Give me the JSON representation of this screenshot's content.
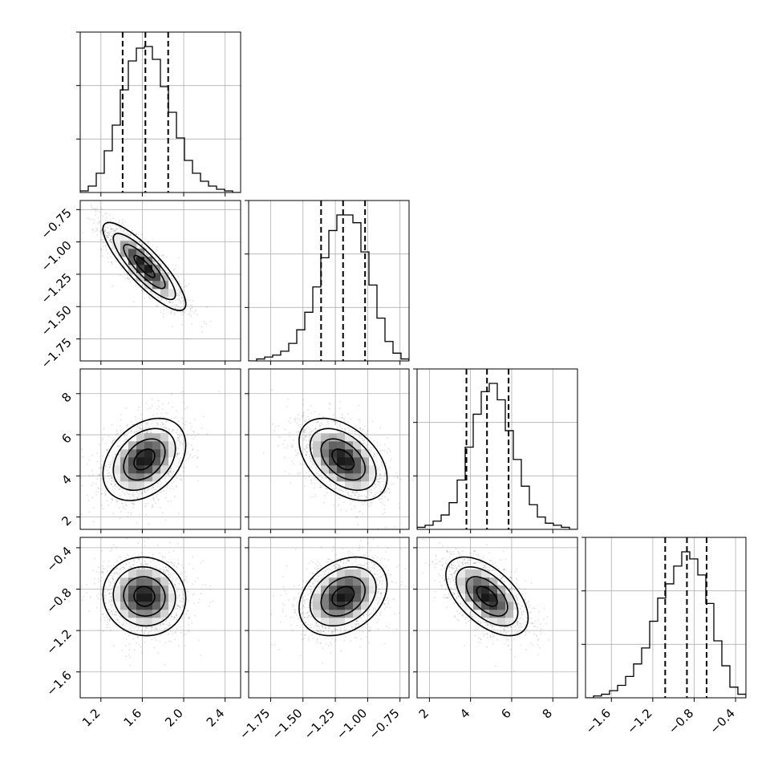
{
  "chart_data": {
    "type": "corner",
    "parameters": [
      {
        "range": [
          1.0,
          2.55
        ],
        "ticks": [
          {
            "v": 1.2,
            "label": "1.2"
          },
          {
            "v": 1.6,
            "label": "1.6"
          },
          {
            "v": 2.0,
            "label": "2.0"
          },
          {
            "v": 2.4,
            "label": "2.4"
          }
        ],
        "quantiles": [
          1.41,
          1.63,
          1.85
        ],
        "hist": {
          "edges": [
            1.0,
            1.0775,
            1.155,
            1.2325,
            1.31,
            1.3875,
            1.465,
            1.5425,
            1.62,
            1.6975,
            1.775,
            1.8525,
            1.93,
            2.0075,
            2.085,
            2.1625,
            2.24,
            2.3175,
            2.395,
            2.4725,
            2.55
          ],
          "values": [
            0.01,
            0.04,
            0.12,
            0.26,
            0.42,
            0.64,
            0.82,
            0.9,
            0.91,
            0.83,
            0.66,
            0.5,
            0.34,
            0.2,
            0.12,
            0.07,
            0.04,
            0.02,
            0.01,
            0.0
          ]
        }
      },
      {
        "range": [
          -1.92,
          -0.68
        ],
        "ticks": [
          {
            "v": -1.75,
            "label": "−1.75"
          },
          {
            "v": -1.5,
            "label": "−1.50"
          },
          {
            "v": -1.25,
            "label": "−1.25"
          },
          {
            "v": -1.0,
            "label": "−1.00"
          },
          {
            "v": -0.75,
            "label": "−0.75"
          }
        ],
        "quantiles": [
          -1.36,
          -1.19,
          -1.02
        ],
        "hist": {
          "edges": [
            -1.92,
            -1.858,
            -1.796,
            -1.734,
            -1.672,
            -1.61,
            -1.548,
            -1.486,
            -1.424,
            -1.362,
            -1.3,
            -1.238,
            -1.176,
            -1.114,
            -1.052,
            -0.99,
            -0.928,
            -0.866,
            -0.804,
            -0.742,
            -0.68
          ],
          "values": [
            0.0,
            0.01,
            0.02,
            0.03,
            0.05,
            0.09,
            0.16,
            0.25,
            0.38,
            0.53,
            0.67,
            0.75,
            0.75,
            0.71,
            0.56,
            0.39,
            0.22,
            0.1,
            0.04,
            0.01
          ]
        }
      },
      {
        "range": [
          1.4,
          9.2
        ],
        "ticks": [
          {
            "v": 2,
            "label": "2"
          },
          {
            "v": 4,
            "label": "4"
          },
          {
            "v": 6,
            "label": "6"
          },
          {
            "v": 8,
            "label": "8"
          }
        ],
        "quantiles": [
          3.8,
          4.8,
          5.85
        ],
        "hist": {
          "edges": [
            1.4,
            1.79,
            2.18,
            2.57,
            2.96,
            3.35,
            3.74,
            4.13,
            4.52,
            4.91,
            5.3,
            5.69,
            6.08,
            6.47,
            6.86,
            7.25,
            7.64,
            8.03,
            8.42,
            8.81,
            9.2
          ],
          "values": [
            0.01,
            0.02,
            0.04,
            0.07,
            0.13,
            0.24,
            0.4,
            0.56,
            0.67,
            0.71,
            0.63,
            0.48,
            0.34,
            0.21,
            0.12,
            0.06,
            0.03,
            0.02,
            0.01,
            0.0
          ]
        }
      },
      {
        "range": [
          -1.85,
          -0.3
        ],
        "ticks": [
          {
            "v": -1.6,
            "label": "−1.6"
          },
          {
            "v": -1.2,
            "label": "−1.2"
          },
          {
            "v": -0.8,
            "label": "−0.8"
          },
          {
            "v": -0.4,
            "label": "−0.4"
          }
        ],
        "quantiles": [
          -1.08,
          -0.87,
          -0.68
        ],
        "hist": {
          "edges": [
            -1.85,
            -1.7725,
            -1.695,
            -1.6175,
            -1.54,
            -1.4625,
            -1.385,
            -1.3075,
            -1.23,
            -1.1525,
            -1.075,
            -0.9975,
            -0.92,
            -0.8425,
            -0.765,
            -0.6875,
            -0.61,
            -0.5325,
            -0.455,
            -0.3775,
            -0.3
          ],
          "values": [
            0.0,
            0.01,
            0.02,
            0.04,
            0.07,
            0.12,
            0.19,
            0.28,
            0.43,
            0.56,
            0.64,
            0.74,
            0.82,
            0.78,
            0.69,
            0.53,
            0.32,
            0.18,
            0.06,
            0.02
          ]
        }
      }
    ],
    "pairs": [
      {
        "row": 1,
        "col": 0,
        "mean": [
          1.62,
          -1.19
        ],
        "sd": [
          0.2,
          0.17
        ],
        "rho": -0.85
      },
      {
        "row": 2,
        "col": 0,
        "mean": [
          1.62,
          4.8
        ],
        "sd": [
          0.2,
          1.0
        ],
        "rho": 0.35
      },
      {
        "row": 2,
        "col": 1,
        "mean": [
          -1.19,
          4.8
        ],
        "sd": [
          0.17,
          1.0
        ],
        "rho": -0.45
      },
      {
        "row": 3,
        "col": 0,
        "mean": [
          1.62,
          -0.87
        ],
        "sd": [
          0.2,
          0.19
        ],
        "rho": -0.05
      },
      {
        "row": 3,
        "col": 1,
        "mean": [
          -1.19,
          -0.87
        ],
        "sd": [
          0.17,
          0.19
        ],
        "rho": 0.3
      },
      {
        "row": 3,
        "col": 2,
        "mean": [
          4.8,
          -0.87
        ],
        "sd": [
          1.0,
          0.19
        ],
        "rho": -0.55
      }
    ],
    "contour_levels_sigma": [
      0.5,
      1.0,
      1.5,
      2.0
    ],
    "grid": true,
    "title": "",
    "xlabel": "",
    "ylabel": ""
  }
}
